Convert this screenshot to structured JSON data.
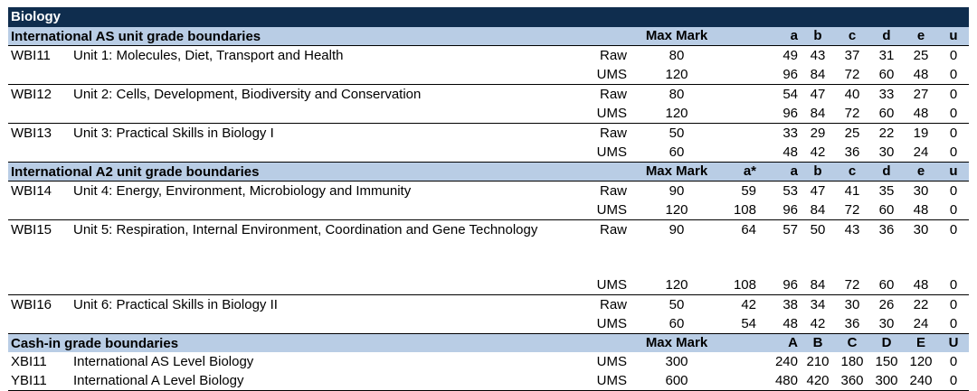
{
  "subject": "Biology",
  "sections": [
    {
      "title": "International AS unit grade boundaries",
      "max_header": "Max Mark",
      "astar_header": "",
      "grade_headers": [
        "a",
        "b",
        "c",
        "d",
        "e",
        "u"
      ],
      "units": [
        {
          "code": "WBI11",
          "title": "Unit 1: Molecules, Diet, Transport and Health",
          "rows": [
            {
              "type": "Raw",
              "max": "80",
              "astar": "",
              "grades": [
                "49",
                "43",
                "37",
                "31",
                "25",
                "0"
              ]
            },
            {
              "type": "UMS",
              "max": "120",
              "astar": "",
              "grades": [
                "96",
                "84",
                "72",
                "60",
                "48",
                "0"
              ]
            }
          ]
        },
        {
          "code": "WBI12",
          "title": "Unit 2: Cells, Development, Biodiversity and Conservation",
          "rows": [
            {
              "type": "Raw",
              "max": "80",
              "astar": "",
              "grades": [
                "54",
                "47",
                "40",
                "33",
                "27",
                "0"
              ]
            },
            {
              "type": "UMS",
              "max": "120",
              "astar": "",
              "grades": [
                "96",
                "84",
                "72",
                "60",
                "48",
                "0"
              ]
            }
          ]
        },
        {
          "code": "WBI13",
          "title": "Unit 3: Practical Skills in Biology I",
          "rows": [
            {
              "type": "Raw",
              "max": "50",
              "astar": "",
              "grades": [
                "33",
                "29",
                "25",
                "22",
                "19",
                "0"
              ]
            },
            {
              "type": "UMS",
              "max": "60",
              "astar": "",
              "grades": [
                "48",
                "42",
                "36",
                "30",
                "24",
                "0"
              ]
            }
          ]
        }
      ]
    },
    {
      "title": "International A2 unit grade boundaries",
      "max_header": "Max Mark",
      "astar_header": "a*",
      "grade_headers": [
        "a",
        "b",
        "c",
        "d",
        "e",
        "u"
      ],
      "units": [
        {
          "code": "WBI14",
          "title": "Unit 4: Energy, Environment, Microbiology and Immunity",
          "rows": [
            {
              "type": "Raw",
              "max": "90",
              "astar": "59",
              "grades": [
                "53",
                "47",
                "41",
                "35",
                "30",
                "0"
              ]
            },
            {
              "type": "UMS",
              "max": "120",
              "astar": "108",
              "grades": [
                "96",
                "84",
                "72",
                "60",
                "48",
                "0"
              ]
            }
          ]
        },
        {
          "code": "WBI15",
          "title": "Unit 5: Respiration, Internal Environment, Coordination and Gene Technology",
          "tall": true,
          "rows": [
            {
              "type": "Raw",
              "max": "90",
              "astar": "64",
              "grades": [
                "57",
                "50",
                "43",
                "36",
                "30",
                "0"
              ]
            },
            {
              "type": "UMS",
              "max": "120",
              "astar": "108",
              "grades": [
                "96",
                "84",
                "72",
                "60",
                "48",
                "0"
              ]
            }
          ]
        },
        {
          "code": "WBI16",
          "title": "Unit 6: Practical Skills in Biology II",
          "rows": [
            {
              "type": "Raw",
              "max": "50",
              "astar": "42",
              "grades": [
                "38",
                "34",
                "30",
                "26",
                "22",
                "0"
              ]
            },
            {
              "type": "UMS",
              "max": "60",
              "astar": "54",
              "grades": [
                "48",
                "42",
                "36",
                "30",
                "24",
                "0"
              ]
            }
          ]
        }
      ]
    },
    {
      "title": "Cash-in grade boundaries",
      "max_header": "Max Mark",
      "astar_header": "",
      "grade_headers": [
        "A",
        "B",
        "C",
        "D",
        "E",
        "U"
      ],
      "units": [
        {
          "code": "XBI11",
          "title": "International AS Level Biology",
          "plain": true,
          "rows": [
            {
              "type": "UMS",
              "max": "300",
              "astar": "",
              "grades": [
                "240",
                "210",
                "180",
                "150",
                "120",
                "0"
              ]
            }
          ]
        },
        {
          "code": "YBI11",
          "title": "International A Level Biology",
          "plain": true,
          "rows": [
            {
              "type": "UMS",
              "max": "600",
              "astar": "",
              "grades": [
                "480",
                "420",
                "360",
                "300",
                "240",
                "0"
              ]
            }
          ]
        }
      ]
    }
  ]
}
